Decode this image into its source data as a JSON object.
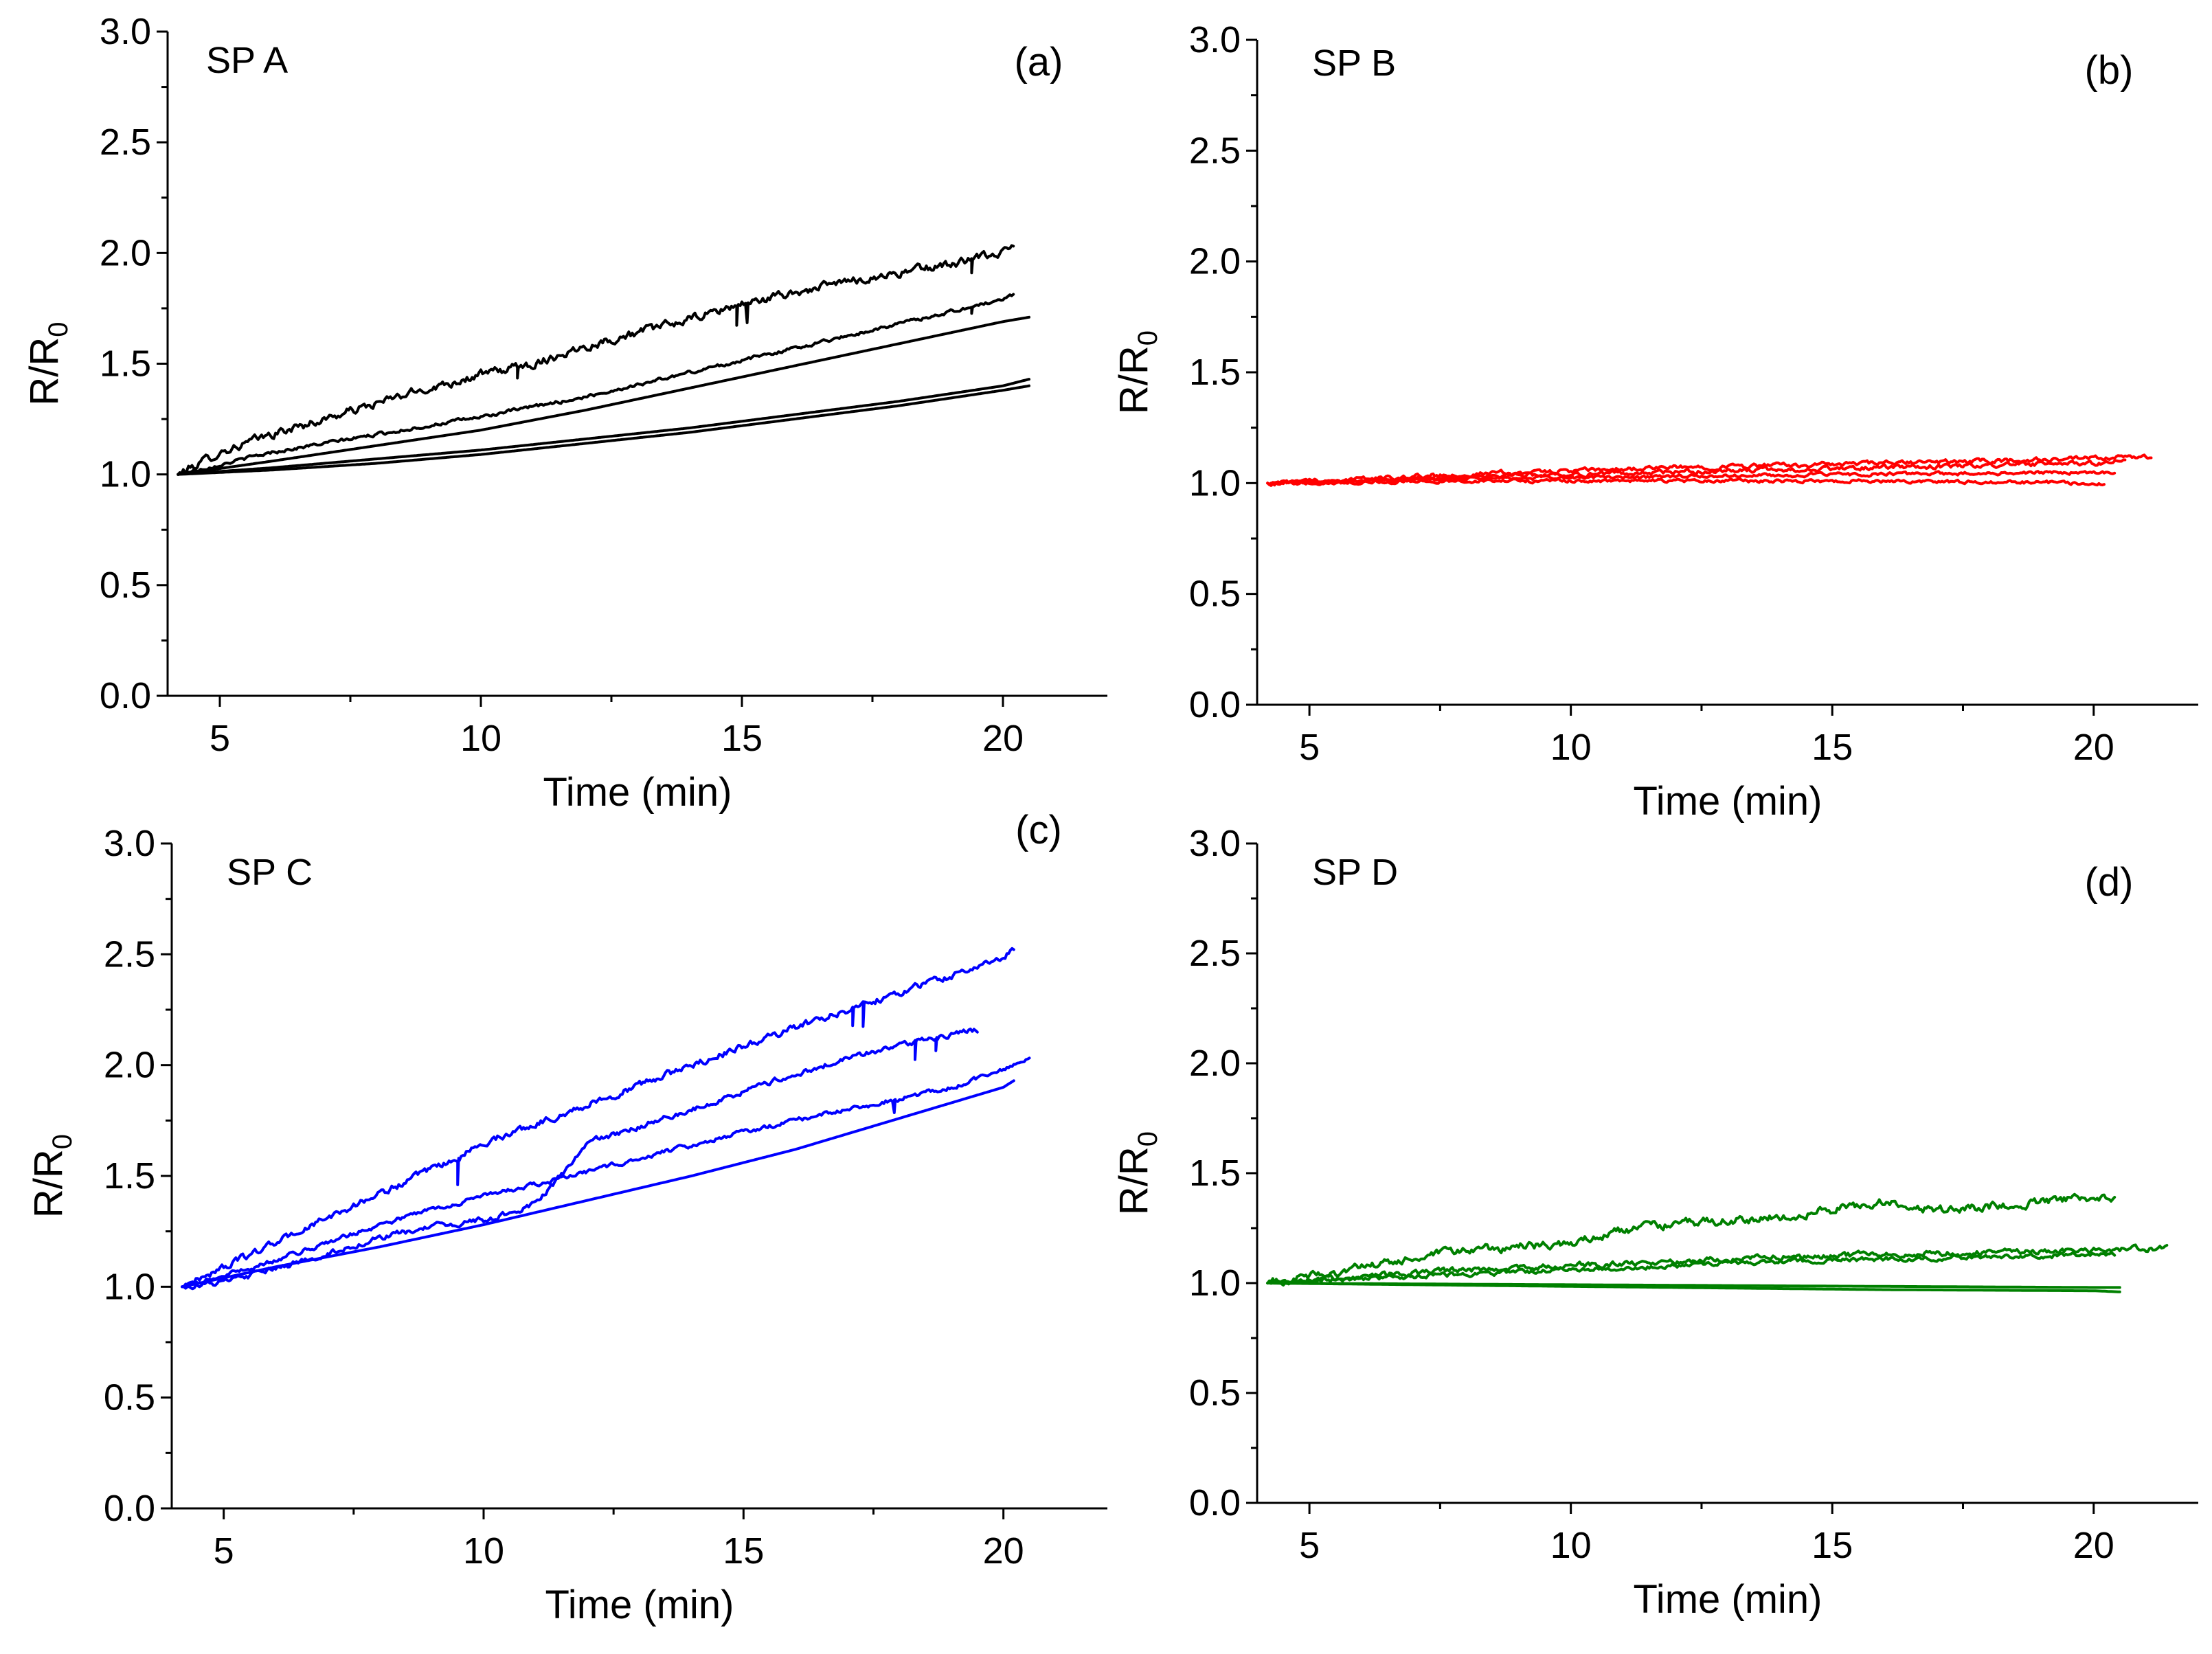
{
  "chart_data": [
    {
      "type": "line",
      "name_label": "SP A",
      "panel_label": "(a)",
      "xlabel": "Time (min)",
      "ylabel_main": "R/R",
      "ylabel_sub": "0",
      "xlim": [
        4,
        22
      ],
      "ylim": [
        0,
        3
      ],
      "xticks": [
        5,
        10,
        15,
        20
      ],
      "xtick_labels": [
        "5",
        "10",
        "15",
        "20"
      ],
      "yticks": [
        0,
        0.5,
        1,
        1.5,
        2,
        2.5,
        3
      ],
      "ytick_labels": [
        "0.0",
        "0.5",
        "1.0",
        "1.5",
        "2.0",
        "2.5",
        "3.0"
      ],
      "color": "#000000",
      "series": [
        {
          "x": [
            4.2,
            5,
            6,
            7,
            8,
            9,
            10,
            11,
            12,
            13,
            14,
            15,
            16,
            17,
            18,
            19,
            20,
            20.2
          ],
          "y": [
            1.0,
            1.1,
            1.18,
            1.25,
            1.32,
            1.39,
            1.45,
            1.5,
            1.58,
            1.64,
            1.7,
            1.77,
            1.82,
            1.87,
            1.91,
            1.95,
            2.0,
            2.03
          ],
          "noise": 0.015,
          "dips": [
            [
              10.7,
              0.05
            ],
            [
              14.9,
              0.09
            ],
            [
              15.1,
              0.09
            ],
            [
              19.4,
              0.06
            ]
          ]
        },
        {
          "x": [
            4.2,
            6,
            8,
            10,
            12,
            14,
            16,
            18,
            20,
            20.2
          ],
          "y": [
            1.0,
            1.1,
            1.18,
            1.26,
            1.35,
            1.46,
            1.57,
            1.68,
            1.79,
            1.81
          ],
          "noise": 0.006,
          "dips": [
            [
              19.4,
              0.03
            ]
          ]
        },
        {
          "x": [
            4.2,
            6,
            8,
            10,
            12,
            14,
            16,
            18,
            20,
            20.5
          ],
          "y": [
            1.0,
            1.06,
            1.13,
            1.2,
            1.29,
            1.39,
            1.49,
            1.59,
            1.69,
            1.71
          ],
          "noise": 0.0,
          "dips": []
        },
        {
          "x": [
            4.2,
            6,
            8,
            10,
            12,
            14,
            16,
            18,
            20,
            20.5
          ],
          "y": [
            1.0,
            1.03,
            1.07,
            1.11,
            1.16,
            1.21,
            1.27,
            1.33,
            1.4,
            1.43
          ],
          "noise": 0.0,
          "dips": []
        },
        {
          "x": [
            4.2,
            6,
            8,
            10,
            12,
            14,
            16,
            18,
            20,
            20.5
          ],
          "y": [
            1.0,
            1.02,
            1.05,
            1.09,
            1.14,
            1.19,
            1.25,
            1.31,
            1.38,
            1.4
          ],
          "noise": 0.0,
          "dips": []
        }
      ]
    },
    {
      "type": "line",
      "name_label": "SP B",
      "panel_label": "(b)",
      "xlabel": "Time (min)",
      "ylabel_main": "R/R",
      "ylabel_sub": "0",
      "xlim": [
        4,
        22
      ],
      "ylim": [
        0,
        3
      ],
      "xticks": [
        5,
        10,
        15,
        20
      ],
      "xtick_labels": [
        "5",
        "10",
        "15",
        "20"
      ],
      "yticks": [
        0,
        0.5,
        1,
        1.5,
        2,
        2.5,
        3
      ],
      "ytick_labels": [
        "0.0",
        "0.5",
        "1.0",
        "1.5",
        "2.0",
        "2.5",
        "3.0"
      ],
      "color": "#ff0000",
      "series": [
        {
          "x": [
            4.2,
            8,
            12,
            16,
            20,
            21.1
          ],
          "y": [
            1.0,
            1.04,
            1.07,
            1.09,
            1.11,
            1.12
          ],
          "noise": 0.008,
          "dips": []
        },
        {
          "x": [
            4.2,
            8,
            12,
            16,
            20,
            20.6
          ],
          "y": [
            1.0,
            1.03,
            1.05,
            1.07,
            1.09,
            1.1
          ],
          "noise": 0.008,
          "dips": []
        },
        {
          "x": [
            4.2,
            8,
            12,
            16,
            20,
            20.4
          ],
          "y": [
            1.0,
            1.02,
            1.03,
            1.04,
            1.05,
            1.05
          ],
          "noise": 0.006,
          "dips": []
        },
        {
          "x": [
            4.2,
            8,
            12,
            16,
            20,
            20.2
          ],
          "y": [
            1.0,
            1.01,
            1.01,
            1.01,
            1.0,
            1.0
          ],
          "noise": 0.006,
          "dips": []
        }
      ]
    },
    {
      "type": "line",
      "name_label": "SP C",
      "panel_label": "(c)",
      "xlabel": "Time (min)",
      "ylabel_main": "R/R",
      "ylabel_sub": "0",
      "xlim": [
        4,
        22
      ],
      "ylim": [
        0,
        3
      ],
      "xticks": [
        5,
        10,
        15,
        20
      ],
      "xtick_labels": [
        "5",
        "10",
        "15",
        "20"
      ],
      "yticks": [
        0,
        0.5,
        1,
        1.5,
        2,
        2.5,
        3
      ],
      "ytick_labels": [
        "0.0",
        "0.5",
        "1.0",
        "1.5",
        "2.0",
        "2.5",
        "3.0"
      ],
      "color": "#0000ff",
      "series": [
        {
          "x": [
            4.2,
            6,
            8,
            9.5,
            10,
            12,
            14,
            16,
            18,
            20,
            20.2
          ],
          "y": [
            1.0,
            1.2,
            1.42,
            1.58,
            1.65,
            1.82,
            2.0,
            2.17,
            2.33,
            2.48,
            2.53
          ],
          "noise": 0.012,
          "dips": [
            [
              9.5,
              0.12
            ],
            [
              17.1,
              0.08
            ],
            [
              17.3,
              0.1
            ]
          ]
        },
        {
          "x": [
            4.2,
            5,
            6,
            7,
            8,
            9,
            10,
            10.5,
            11,
            11.5,
            12,
            13,
            14,
            15,
            16,
            17,
            18,
            19,
            19.5
          ],
          "y": [
            1.0,
            1.02,
            1.08,
            1.15,
            1.22,
            1.27,
            1.3,
            1.33,
            1.38,
            1.5,
            1.65,
            1.72,
            1.8,
            1.88,
            1.96,
            2.03,
            2.09,
            2.14,
            2.16
          ],
          "noise": 0.01,
          "dips": [
            [
              18.3,
              0.08
            ],
            [
              18.7,
              0.06
            ]
          ]
        },
        {
          "x": [
            4.2,
            5,
            6,
            7,
            8,
            9,
            10,
            11,
            12,
            13,
            14,
            15,
            16,
            17,
            18,
            19,
            20,
            20.5
          ],
          "y": [
            1.0,
            1.05,
            1.12,
            1.2,
            1.28,
            1.35,
            1.41,
            1.46,
            1.52,
            1.58,
            1.64,
            1.7,
            1.75,
            1.8,
            1.85,
            1.9,
            1.98,
            2.03
          ],
          "noise": 0.008,
          "dips": [
            [
              17.9,
              0.06
            ]
          ]
        },
        {
          "x": [
            4.2,
            6,
            8,
            10,
            12,
            14,
            16,
            18,
            20,
            20.2
          ],
          "y": [
            1.0,
            1.09,
            1.18,
            1.28,
            1.39,
            1.5,
            1.62,
            1.76,
            1.9,
            1.93
          ],
          "noise": 0.0,
          "dips": []
        }
      ]
    },
    {
      "type": "line",
      "name_label": "SP D",
      "panel_label": "(d)",
      "xlabel": "Time (min)",
      "ylabel_main": "R/R",
      "ylabel_sub": "0",
      "xlim": [
        4,
        22
      ],
      "ylim": [
        0,
        3
      ],
      "xticks": [
        5,
        10,
        15,
        20
      ],
      "xtick_labels": [
        "5",
        "10",
        "15",
        "20"
      ],
      "yticks": [
        0,
        0.5,
        1,
        1.5,
        2,
        2.5,
        3
      ],
      "ytick_labels": [
        "0.0",
        "0.5",
        "1.0",
        "1.5",
        "2.0",
        "2.5",
        "3.0"
      ],
      "color": "#008000",
      "series": [
        {
          "x": [
            4.2,
            6,
            8,
            10,
            11,
            12,
            14,
            16,
            17,
            18,
            19,
            20,
            20.4
          ],
          "y": [
            1.0,
            1.07,
            1.15,
            1.18,
            1.24,
            1.27,
            1.3,
            1.37,
            1.33,
            1.35,
            1.37,
            1.39,
            1.37
          ],
          "noise": 0.015,
          "dips": []
        },
        {
          "x": [
            4.2,
            6,
            8,
            10,
            12,
            14,
            16,
            18,
            20,
            21.4
          ],
          "y": [
            1.0,
            1.03,
            1.06,
            1.08,
            1.1,
            1.12,
            1.13,
            1.14,
            1.15,
            1.16
          ],
          "noise": 0.01,
          "dips": []
        },
        {
          "x": [
            4.2,
            6,
            8,
            10,
            12,
            14,
            16,
            18,
            20,
            20.4
          ],
          "y": [
            1.0,
            1.02,
            1.04,
            1.06,
            1.08,
            1.1,
            1.11,
            1.12,
            1.13,
            1.13
          ],
          "noise": 0.008,
          "dips": []
        },
        {
          "x": [
            4.2,
            8,
            12,
            16,
            20,
            20.5
          ],
          "y": [
            1.0,
            0.995,
            0.99,
            0.985,
            0.98,
            0.98
          ],
          "noise": 0.0,
          "dips": []
        },
        {
          "x": [
            4.2,
            8,
            12,
            16,
            20,
            20.5
          ],
          "y": [
            1.0,
            0.99,
            0.98,
            0.97,
            0.965,
            0.96
          ],
          "noise": 0.0,
          "dips": []
        }
      ]
    }
  ]
}
